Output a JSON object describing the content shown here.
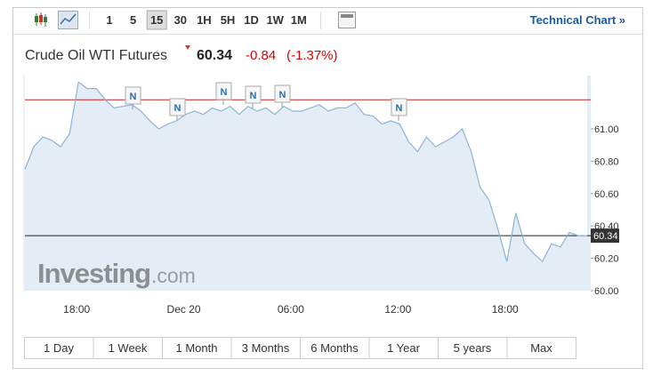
{
  "toolbar": {
    "intervals": [
      "1",
      "5",
      "15",
      "30",
      "1H",
      "5H",
      "1D",
      "1W",
      "1M"
    ],
    "active_interval": 2,
    "link": "Technical Chart »"
  },
  "header": {
    "title": "Crude Oil WTI Futures",
    "change": "-0.84",
    "change_percent": "(-1.37%)"
  },
  "watermark": [
    "Investing",
    ".com"
  ],
  "ranges": [
    "1 Day",
    "1 Week",
    "1 Month",
    "3 Months",
    "6 Months",
    "1 Year",
    "5 years",
    "Max"
  ],
  "chart_data": {
    "type": "line",
    "categories": [
      null,
      null,
      null,
      null,
      null,
      null,
      "18:00",
      null,
      null,
      null,
      null,
      null,
      null,
      null,
      null,
      null,
      null,
      null,
      "Dec 20",
      null,
      null,
      null,
      null,
      null,
      null,
      null,
      null,
      null,
      null,
      null,
      "06:00",
      null,
      null,
      null,
      null,
      null,
      null,
      null,
      null,
      null,
      null,
      null,
      "12:00",
      null,
      null,
      null,
      null,
      null,
      null,
      null,
      null,
      null,
      null,
      null,
      "18:00",
      null,
      null,
      null,
      null,
      null,
      null,
      null,
      null,
      null
    ],
    "values": [
      60.75,
      60.89,
      60.95,
      60.93,
      60.89,
      60.97,
      61.29,
      61.25,
      61.25,
      61.18,
      61.13,
      61.14,
      61.15,
      61.11,
      61.05,
      61.0,
      61.03,
      61.05,
      61.09,
      61.11,
      61.09,
      61.13,
      61.11,
      61.14,
      61.09,
      61.14,
      61.11,
      61.13,
      61.09,
      61.14,
      61.11,
      61.11,
      61.13,
      61.15,
      61.11,
      61.13,
      61.13,
      61.16,
      61.09,
      61.08,
      61.03,
      61.05,
      61.03,
      60.92,
      60.86,
      60.95,
      60.89,
      60.92,
      60.95,
      61.0,
      60.86,
      60.64,
      60.56,
      60.38,
      60.18,
      60.48,
      60.29,
      60.23,
      60.18,
      60.29,
      60.27,
      60.36,
      60.34,
      60.34
    ],
    "color": "#8db3d8",
    "ylim": [
      60.0,
      61.33
    ],
    "yticks": [
      {
        "value": 60,
        "label": "60.00"
      },
      {
        "value": 60.2,
        "label": "60.20"
      },
      {
        "value": 60.4,
        "label": "60.40"
      },
      {
        "value": 60.6,
        "label": "60.60"
      },
      {
        "value": 60.8,
        "label": "60.80"
      },
      {
        "value": 61,
        "label": "61.00"
      }
    ],
    "previous_close": 61.18,
    "previous_close_color": "#cc2222",
    "last_price": 60.34,
    "annotations": [
      "N",
      "N",
      "N",
      "N",
      "N",
      "N"
    ]
  }
}
